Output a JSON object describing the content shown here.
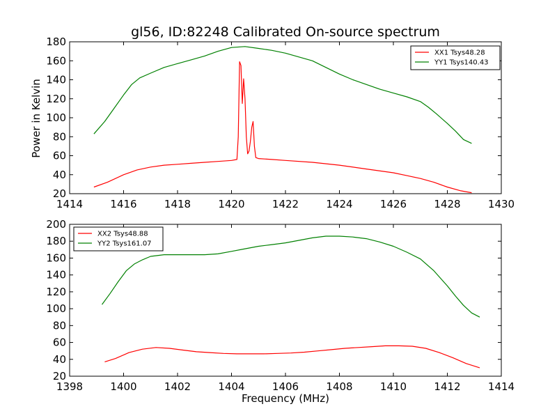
{
  "chart_data": [
    {
      "type": "line",
      "title": "gl56, ID:82248 Calibrated On-source spectrum",
      "xlabel": "",
      "ylabel": "Power in Kelvin",
      "xlim": [
        1414,
        1430
      ],
      "ylim": [
        20,
        180
      ],
      "xticks": [
        1414,
        1416,
        1418,
        1420,
        1422,
        1424,
        1426,
        1428,
        1430
      ],
      "yticks": [
        20,
        40,
        60,
        80,
        100,
        120,
        140,
        160,
        180
      ],
      "grid": false,
      "legend": "top-right",
      "series": [
        {
          "name": "XX1 Tsys48.28",
          "color": "#ff0000",
          "x": [
            1414.9,
            1415.4,
            1416.0,
            1416.5,
            1417.0,
            1417.5,
            1418.0,
            1418.5,
            1419.0,
            1419.5,
            1420.0,
            1420.2,
            1420.25,
            1420.3,
            1420.35,
            1420.4,
            1420.45,
            1420.5,
            1420.55,
            1420.6,
            1420.65,
            1420.7,
            1420.75,
            1420.8,
            1420.85,
            1420.9,
            1421.0,
            1421.5,
            1422.0,
            1423.0,
            1424.0,
            1425.0,
            1426.0,
            1426.5,
            1427.0,
            1427.5,
            1428.0,
            1428.5,
            1428.9
          ],
          "y": [
            27,
            32,
            40,
            45,
            48,
            50,
            51,
            52,
            53,
            54,
            55,
            56,
            80,
            159,
            155,
            115,
            141,
            120,
            80,
            62,
            65,
            75,
            90,
            96,
            70,
            58,
            57,
            56,
            55,
            53,
            50,
            46,
            42,
            39,
            36,
            32,
            27,
            23,
            21
          ]
        },
        {
          "name": "YY1 Tsys140.43",
          "color": "#008000",
          "x": [
            1414.9,
            1415.3,
            1415.6,
            1416.0,
            1416.3,
            1416.6,
            1417.0,
            1417.5,
            1418.0,
            1418.5,
            1419.0,
            1419.5,
            1420.0,
            1420.5,
            1421.0,
            1421.5,
            1422.0,
            1422.5,
            1423.0,
            1423.5,
            1424.0,
            1424.5,
            1425.0,
            1425.5,
            1426.0,
            1426.5,
            1427.0,
            1427.3,
            1427.6,
            1428.0,
            1428.3,
            1428.6,
            1428.9
          ],
          "y": [
            83,
            96,
            108,
            124,
            135,
            142,
            147,
            153,
            157,
            161,
            165,
            170,
            174,
            175,
            173,
            171,
            168,
            164,
            160,
            153,
            146,
            140,
            135,
            130,
            126,
            122,
            117,
            111,
            104,
            94,
            86,
            77,
            73
          ]
        }
      ]
    },
    {
      "type": "line",
      "title": "",
      "xlabel": "Frequency (MHz)",
      "ylabel": "",
      "xlim": [
        1398,
        1414
      ],
      "ylim": [
        20,
        200
      ],
      "xticks": [
        1398,
        1400,
        1402,
        1404,
        1406,
        1408,
        1410,
        1412,
        1414
      ],
      "yticks": [
        20,
        40,
        60,
        80,
        100,
        120,
        140,
        160,
        180,
        200
      ],
      "grid": false,
      "legend": "top-left",
      "series": [
        {
          "name": "XX2 Tsys48.88",
          "color": "#ff0000",
          "x": [
            1399.3,
            1399.7,
            1400.2,
            1400.7,
            1401.2,
            1401.7,
            1402.2,
            1402.7,
            1403.2,
            1403.7,
            1404.2,
            1404.7,
            1405.2,
            1405.7,
            1406.2,
            1406.7,
            1407.2,
            1407.7,
            1408.2,
            1408.7,
            1409.2,
            1409.7,
            1410.2,
            1410.7,
            1411.2,
            1411.7,
            1412.2,
            1412.7,
            1413.2
          ],
          "y": [
            37,
            41,
            48,
            52,
            54,
            53,
            51,
            49,
            48,
            47,
            46.5,
            46.5,
            46.5,
            47,
            47.5,
            48.5,
            50,
            51.5,
            53,
            54,
            55,
            56,
            56,
            55.5,
            53,
            48,
            42,
            35,
            30
          ]
        },
        {
          "name": "YY2 Tsys161.07",
          "color": "#008000",
          "x": [
            1399.2,
            1399.5,
            1399.8,
            1400.1,
            1400.4,
            1400.7,
            1401.0,
            1401.5,
            1402.0,
            1402.5,
            1403.0,
            1403.5,
            1404.0,
            1404.5,
            1405.0,
            1405.5,
            1406.0,
            1406.5,
            1407.0,
            1407.5,
            1408.0,
            1408.5,
            1409.0,
            1409.5,
            1410.0,
            1410.5,
            1411.0,
            1411.5,
            1412.0,
            1412.3,
            1412.6,
            1412.9,
            1413.2
          ],
          "y": [
            105,
            118,
            132,
            145,
            153,
            158,
            162,
            164,
            164,
            164,
            164,
            165,
            168,
            171,
            174,
            176,
            178,
            181,
            184,
            186,
            186,
            185,
            183,
            179,
            174,
            167,
            159,
            145,
            127,
            115,
            104,
            95,
            90
          ]
        }
      ]
    }
  ]
}
